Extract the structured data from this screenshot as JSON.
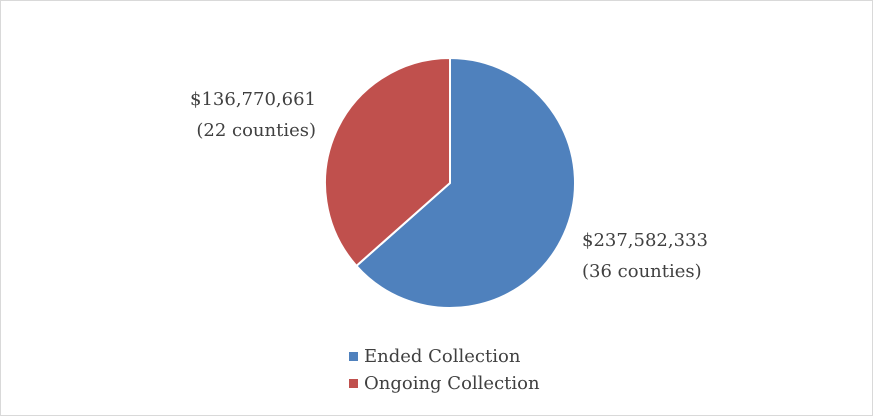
{
  "chart_data": {
    "type": "pie",
    "title": "",
    "slices": [
      {
        "name": "Ended Collection",
        "value": 237582333,
        "label_amount": "$237,582,333",
        "label_count": "(36 counties)",
        "color": "#4f81bd"
      },
      {
        "name": "Ongoing Collection",
        "value": 136770661,
        "label_amount": "$136,770,661",
        "label_count": "(22 counties)",
        "color": "#c0504d"
      }
    ],
    "start_angle_deg": 0,
    "direction": "clockwise",
    "legend_position": "bottom",
    "grid": false
  }
}
